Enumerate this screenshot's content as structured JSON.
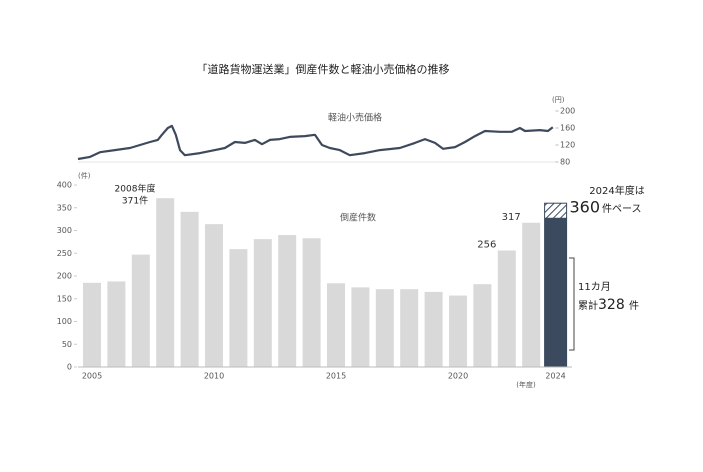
{
  "chart_data": [
    {
      "type": "line",
      "title": "「道路貨物運送業」倒産件数と軽油小売価格の推移",
      "label": "軽油小売価格",
      "y_axis_label": "(円)",
      "color": "#3e4a5c",
      "x": [
        2004.43,
        2004.92,
        2005.33,
        2005.94,
        2006.56,
        2006.97,
        2007.38,
        2007.7,
        2007.87,
        2008.11,
        2008.28,
        2008.44,
        2008.61,
        2008.81,
        2009.43,
        2010.04,
        2010.45,
        2010.86,
        2011.27,
        2011.68,
        2011.97,
        2012.3,
        2012.7,
        2013.11,
        2013.73,
        2014.14,
        2014.43,
        2014.75,
        2015.16,
        2015.57,
        2016.19,
        2016.8,
        2017.62,
        2018.24,
        2018.65,
        2019.06,
        2019.39,
        2019.88,
        2020.29,
        2020.7,
        2021.11,
        2021.72,
        2022.21,
        2022.54,
        2022.75,
        2023.36,
        2023.69,
        2023.89
      ],
      "values": [
        87,
        92,
        103,
        108,
        113,
        120,
        127,
        132,
        144,
        160,
        165,
        144,
        108,
        96,
        101,
        108,
        113,
        127,
        125,
        132,
        122,
        132,
        134,
        139,
        141,
        144,
        120,
        113,
        108,
        96,
        101,
        108,
        113,
        125,
        134,
        125,
        111,
        115,
        127,
        141,
        153,
        151,
        151,
        160,
        153,
        155,
        153,
        162
      ],
      "xlim": [
        2004.43,
        2024.0
      ],
      "ylim": [
        80,
        200
      ],
      "yticks": [
        80,
        120,
        160,
        200
      ]
    },
    {
      "type": "bar",
      "label": "倒産件数",
      "y_axis_label": "(件)",
      "x_axis_label": "(年度)",
      "categories": [
        "2005",
        null,
        null,
        null,
        null,
        "2010",
        null,
        null,
        null,
        null,
        "2015",
        null,
        null,
        null,
        null,
        "2020",
        null,
        null,
        null,
        "2024"
      ],
      "values": [
        185,
        188,
        247,
        371,
        341,
        314,
        259,
        281,
        290,
        283,
        184,
        175,
        171,
        171,
        165,
        157,
        182,
        256,
        317,
        328
      ],
      "colors": [
        "#d9d9d9",
        "#d9d9d9",
        "#d9d9d9",
        "#d9d9d9",
        "#d9d9d9",
        "#d9d9d9",
        "#d9d9d9",
        "#d9d9d9",
        "#d9d9d9",
        "#d9d9d9",
        "#d9d9d9",
        "#d9d9d9",
        "#d9d9d9",
        "#d9d9d9",
        "#d9d9d9",
        "#d9d9d9",
        "#d9d9d9",
        "#d9d9d9",
        "#d9d9d9",
        "#3b4a5e"
      ],
      "forecast": 360,
      "ylim": [
        0,
        400
      ],
      "yticks": [
        0,
        50,
        100,
        150,
        200,
        250,
        300,
        350,
        400
      ],
      "annotations": {
        "peak_year": "2008年度",
        "peak_count": "371件",
        "forecast_head": "2024年度は",
        "forecast_unit": "件ペース",
        "months": "11カ月",
        "cumulative": "累計",
        "unit": "件"
      }
    }
  ]
}
